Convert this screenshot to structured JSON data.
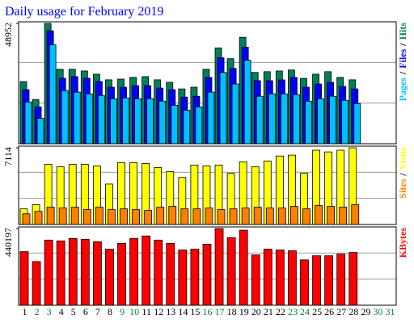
{
  "chart_data": {
    "type": "bar",
    "title": "Daily usage for February 2019",
    "title_color": "#0000ff",
    "categories": [
      "1",
      "2",
      "3",
      "4",
      "5",
      "6",
      "7",
      "8",
      "9",
      "10",
      "11",
      "12",
      "13",
      "14",
      "15",
      "16",
      "17",
      "18",
      "19",
      "20",
      "21",
      "22",
      "23",
      "24",
      "25",
      "26",
      "27",
      "28",
      "29",
      "30",
      "31"
    ],
    "category_colors": [
      "#000000",
      "#008040",
      "#008040",
      "#000000",
      "#000000",
      "#000000",
      "#000000",
      "#000000",
      "#008040",
      "#008040",
      "#000000",
      "#000000",
      "#000000",
      "#000000",
      "#000000",
      "#008040",
      "#008040",
      "#000000",
      "#000000",
      "#000000",
      "#000000",
      "#000000",
      "#008040",
      "#008040",
      "#000000",
      "#000000",
      "#000000",
      "#000000",
      "#000000",
      "#008040",
      "#008040"
    ],
    "legend_separator": "/",
    "y_axes": [
      {
        "ylim": [
          0,
          48952
        ],
        "yticks": [
          48952
        ]
      },
      {
        "ylim": [
          0,
          7114
        ],
        "yticks": [
          7114
        ]
      },
      {
        "ylim": [
          0,
          440197
        ],
        "yticks": [
          440197
        ]
      }
    ],
    "series": [
      {
        "name": "Hits",
        "color": "#00805c",
        "axis": 0,
        "values": [
          25300,
          18000,
          48952,
          30300,
          30300,
          29600,
          28300,
          26000,
          26300,
          27000,
          27300,
          26000,
          25000,
          22300,
          23000,
          30300,
          39000,
          34600,
          43300,
          29000,
          29300,
          29600,
          30000,
          26600,
          28300,
          29300,
          27000,
          26000,
          null,
          null,
          null
        ]
      },
      {
        "name": "Files",
        "color": "#0000ff",
        "axis": 0,
        "values": [
          21980,
          14990,
          45950,
          26640,
          27310,
          26640,
          25310,
          22980,
          22980,
          23640,
          23640,
          22640,
          21980,
          18980,
          19310,
          26970,
          34970,
          30640,
          39290,
          25640,
          25640,
          25970,
          26970,
          22980,
          24310,
          24980,
          23310,
          22310,
          null,
          null,
          null
        ]
      },
      {
        "name": "Pages",
        "color": "#00c0ff",
        "axis": 0,
        "values": [
          16980,
          10320,
          40290,
          21650,
          20980,
          20310,
          19650,
          18320,
          18650,
          18320,
          18320,
          17320,
          15650,
          13650,
          14990,
          20980,
          28970,
          24310,
          33970,
          19310,
          20310,
          20310,
          19980,
          17320,
          18320,
          19310,
          17650,
          16320,
          null,
          null,
          null
        ]
      },
      {
        "name": "Visits",
        "color": "#ffff00",
        "axis": 1,
        "values": [
          1450,
          1840,
          5580,
          5360,
          5580,
          5580,
          5430,
          3750,
          5740,
          5740,
          5660,
          5280,
          4900,
          4360,
          5510,
          5430,
          5510,
          4740,
          5810,
          5360,
          5890,
          6350,
          6430,
          4740,
          6890,
          6730,
          6890,
          7114,
          null,
          null,
          null
        ]
      },
      {
        "name": "Sites",
        "color": "#ff8000",
        "axis": 1,
        "values": [
          990,
          1220,
          1610,
          1530,
          1610,
          1380,
          1610,
          1380,
          1450,
          1380,
          1300,
          1610,
          1680,
          1450,
          1450,
          1530,
          1380,
          1450,
          1530,
          1610,
          1530,
          1530,
          1680,
          1450,
          1760,
          1680,
          1610,
          1840,
          null,
          null,
          null
        ]
      },
      {
        "name": "KBytes",
        "color": "#ff0000",
        "axis": 2,
        "values": [
          307600,
          250800,
          373900,
          369200,
          383400,
          378600,
          364400,
          321800,
          355000,
          383400,
          397600,
          373900,
          355000,
          317100,
          321800,
          350200,
          440197,
          388100,
          430700,
          288700,
          321800,
          317100,
          312400,
          260300,
          284000,
          284000,
          293400,
          302900,
          null,
          null,
          null
        ]
      }
    ]
  }
}
